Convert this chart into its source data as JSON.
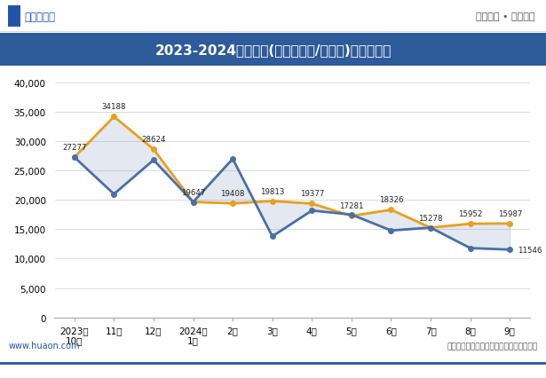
{
  "title": "2023-2024年新余市(境内目的地/货源地)进、出口额",
  "x_labels": [
    "2023年\n10月",
    "11月",
    "12月",
    "2024年\n1月",
    "2月",
    "3月",
    "4月",
    "5月",
    "6月",
    "7月",
    "8月",
    "9月"
  ],
  "export_values": [
    27277,
    34188,
    28624,
    19647,
    19408,
    19813,
    19377,
    17281,
    18326,
    15278,
    15952,
    15987
  ],
  "import_values": [
    27277,
    21000,
    26800,
    19647,
    27000,
    13800,
    18200,
    17500,
    14800,
    15278,
    11800,
    11546
  ],
  "export_color": "#E8A020",
  "import_color": "#4A6FA5",
  "fill_color": "#8899BB",
  "ylim": [
    0,
    40000
  ],
  "yticks": [
    0,
    5000,
    10000,
    15000,
    20000,
    25000,
    30000,
    35000,
    40000
  ],
  "title_bg_color": "#2E5B99",
  "title_text_color": "#FFFFFF",
  "background_color": "#FFFFFF",
  "plot_bg_color": "#FFFFFF",
  "export_annotations": [
    27277,
    34188,
    28624,
    19647,
    19408,
    19813,
    19377,
    17281,
    18326,
    15278,
    15952,
    15987
  ],
  "source_text": "数据来源：中国海关；华经产业研究院整理",
  "website_left": "www.huaon.com",
  "header_left": "华经情报网",
  "header_right": "专业严谨 • 客观科学"
}
